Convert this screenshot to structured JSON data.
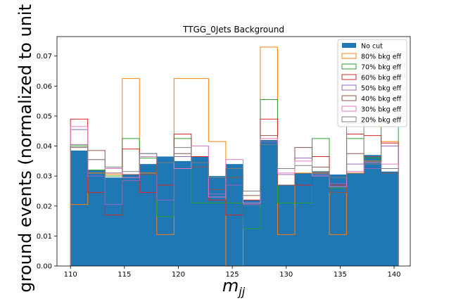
{
  "chart_data": {
    "type": "histogram",
    "title": "TTGG_0Jets Background",
    "xlabel": "m_jj",
    "xlabel_main": "m",
    "xlabel_sub": "jj",
    "ylabel": "ground events (normalized to unit",
    "xlim": [
      108.75,
      141.5
    ],
    "ylim": [
      0,
      0.0765
    ],
    "x_ticks": [
      110,
      115,
      120,
      125,
      130,
      135,
      140
    ],
    "y_ticks": [
      0.0,
      0.01,
      0.02,
      0.03,
      0.04,
      0.05,
      0.06,
      0.07
    ],
    "y_tick_labels": [
      "0.00",
      "0.01",
      "0.02",
      "0.03",
      "0.04",
      "0.05",
      "0.06",
      "0.07"
    ],
    "bin_edges": [
      110,
      111.6,
      113.2,
      114.8,
      116.4,
      118,
      119.6,
      121.2,
      122.8,
      124.4,
      126,
      127.6,
      129.2,
      130.8,
      132.4,
      134,
      135.6,
      137.2,
      138.8,
      140.4
    ],
    "legend_position": "top-right",
    "series": [
      {
        "name": "No cut",
        "style": "filled",
        "color": "#1f77b4",
        "values": [
          0.0385,
          0.032,
          0.0295,
          0.0305,
          0.034,
          0.0365,
          0.035,
          0.0365,
          0.03,
          0.034,
          0.022,
          0.042,
          0.027,
          0.031,
          0.0315,
          0.0305,
          0.031,
          0.037,
          0.0315
        ]
      },
      {
        "name": "80% bkg eff",
        "style": "step",
        "color": "#ff7f0e",
        "values": [
          0.0205,
          0.031,
          0.0305,
          0.0625,
          0.031,
          0.0105,
          0.0625,
          0.0625,
          0.0415,
          0.0,
          0.0205,
          0.073,
          0.0105,
          0.031,
          0.031,
          0.0105,
          0.031,
          0.035,
          0.0415
        ]
      },
      {
        "name": "70% bkg eff",
        "style": "step",
        "color": "#2ca02c",
        "values": [
          0.04,
          0.032,
          0.03,
          0.0425,
          0.036,
          0.0165,
          0.0425,
          0.021,
          0.021,
          0.021,
          0.0125,
          0.0555,
          0.021,
          0.021,
          0.0425,
          0.026,
          0.0425,
          0.036,
          0.0465
        ]
      },
      {
        "name": "60% bkg eff",
        "style": "step",
        "color": "#d62728",
        "values": [
          0.049,
          0.0245,
          0.017,
          0.039,
          0.0245,
          0.027,
          0.044,
          0.0365,
          0.022,
          0.017,
          0.022,
          0.049,
          0.027,
          0.027,
          0.0365,
          0.027,
          0.044,
          0.0435,
          0.041
        ]
      },
      {
        "name": "50% bkg eff",
        "style": "step",
        "color": "#9467bd",
        "values": [
          0.0455,
          0.03,
          0.0205,
          0.0285,
          0.0375,
          0.022,
          0.0365,
          0.04,
          0.024,
          0.027,
          0.0205,
          0.0415,
          0.0305,
          0.036,
          0.0305,
          0.0275,
          0.034,
          0.0325,
          0.04
        ]
      },
      {
        "name": "40% bkg eff",
        "style": "step",
        "color": "#8c564b",
        "values": [
          0.0395,
          0.0385,
          0.031,
          0.0305,
          0.0305,
          0.0345,
          0.0375,
          0.033,
          0.0255,
          0.0295,
          0.0235,
          0.0435,
          0.027,
          0.0395,
          0.033,
          0.0245,
          0.0375,
          0.0365,
          0.031
        ]
      },
      {
        "name": "30% bkg eff",
        "style": "step",
        "color": "#e377c2",
        "values": [
          0.0465,
          0.0355,
          0.0325,
          0.0295,
          0.0365,
          0.0345,
          0.0325,
          0.04,
          0.023,
          0.0355,
          0.021,
          0.0425,
          0.031,
          0.035,
          0.03,
          0.0265,
          0.0315,
          0.0345,
          0.034
        ]
      },
      {
        "name": "20% bkg eff",
        "style": "step",
        "color": "#7f7f7f",
        "values": [
          0.0405,
          0.0355,
          0.033,
          0.0315,
          0.0375,
          0.0345,
          0.0395,
          0.0345,
          0.0295,
          0.0325,
          0.025,
          0.0405,
          0.0325,
          0.0335,
          0.0315,
          0.0295,
          0.0475,
          0.034,
          0.0325
        ]
      }
    ]
  }
}
